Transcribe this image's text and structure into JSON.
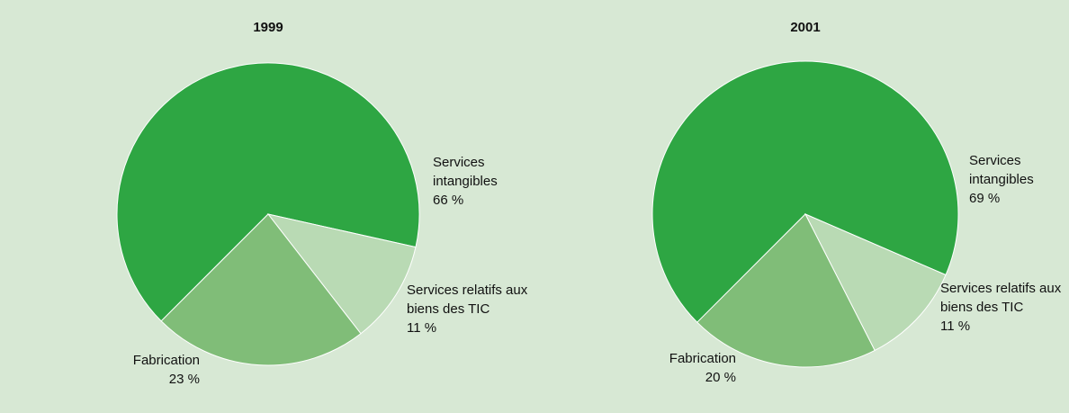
{
  "chart_data": [
    {
      "type": "pie",
      "title": "1999",
      "categories": [
        "Services intangibles",
        "Services relatifs aux biens des TIC",
        "Fabrication"
      ],
      "values": [
        66,
        11,
        23
      ],
      "value_labels": [
        "66 %",
        "11 %",
        "23 %"
      ],
      "colors": [
        "#2ea643",
        "#b9dab4",
        "#80bd78"
      ]
    },
    {
      "type": "pie",
      "title": "2001",
      "categories": [
        "Services intangibles",
        "Services relatifs aux biens des TIC",
        "Fabrication"
      ],
      "values": [
        69,
        11,
        20
      ],
      "value_labels": [
        "69 %",
        "11 %",
        "20 %"
      ],
      "colors": [
        "#2ea643",
        "#b9dab4",
        "#80bd78"
      ]
    }
  ]
}
